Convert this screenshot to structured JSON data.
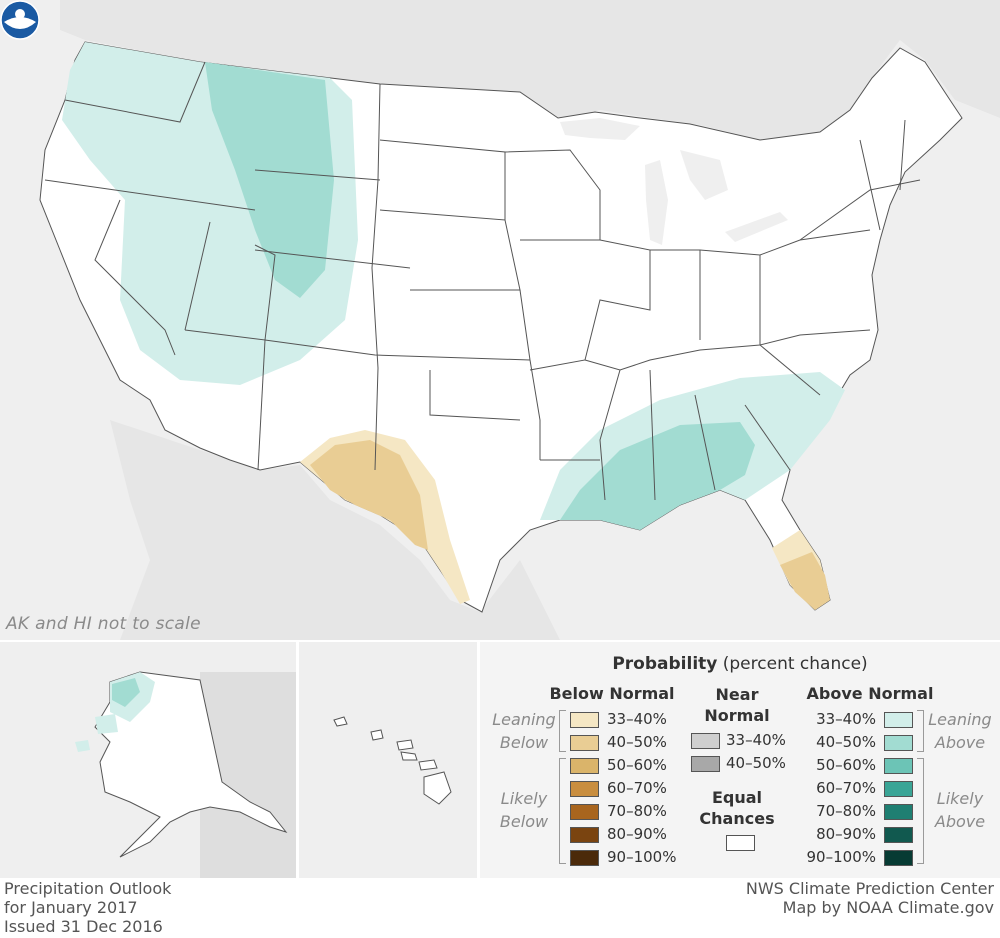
{
  "map": {
    "scale_note": "AK and HI not to scale",
    "logo_icon": "noaa-logo-icon",
    "colors": {
      "background_land": "#e6e6e6",
      "water": "#efefef",
      "us_land": "#ffffff",
      "state_border": "#555555"
    },
    "regions": [
      {
        "id": "northwest-leaning-above",
        "category": "Above Normal 33-40%",
        "color": "#d2eeea"
      },
      {
        "id": "northern-rockies-above",
        "category": "Above Normal 40-50%",
        "color": "#a2dcd2"
      },
      {
        "id": "southeast-leaning-above",
        "category": "Above Normal 33-40%",
        "color": "#d2eeea"
      },
      {
        "id": "gulf-coast-above",
        "category": "Above Normal 40-50%",
        "color": "#a2dcd2"
      },
      {
        "id": "texas-leaning-below",
        "category": "Below Normal 33-40%",
        "color": "#f5e7c4"
      },
      {
        "id": "west-texas-below",
        "category": "Below Normal 40-50%",
        "color": "#e9cd94"
      },
      {
        "id": "florida-leaning-below",
        "category": "Below Normal 33-40%",
        "color": "#f5e7c4"
      },
      {
        "id": "south-florida-below",
        "category": "Below Normal 40-50%",
        "color": "#e9cd94"
      },
      {
        "id": "alaska-leaning-above",
        "category": "Above Normal 33-40%",
        "color": "#d2eeea"
      },
      {
        "id": "alaska-above",
        "category": "Above Normal 40-50%",
        "color": "#a2dcd2"
      }
    ]
  },
  "legend": {
    "title_bold": "Probability",
    "title_rest": " (percent chance)",
    "below": {
      "heading": "Below Normal",
      "leaning_label": [
        "Leaning",
        "Below"
      ],
      "likely_label": [
        "Likely",
        "Below"
      ],
      "items": [
        {
          "label": "33–40%",
          "color": "#f5e7c4"
        },
        {
          "label": "40–50%",
          "color": "#e9cd94"
        },
        {
          "label": "50–60%",
          "color": "#dab46a"
        },
        {
          "label": "60–70%",
          "color": "#c98e3f"
        },
        {
          "label": "70–80%",
          "color": "#a8651e"
        },
        {
          "label": "80–90%",
          "color": "#7a4410"
        },
        {
          "label": "90–100%",
          "color": "#4b2a0a"
        }
      ]
    },
    "near": {
      "heading": [
        "Near",
        "Normal"
      ],
      "items": [
        {
          "label": "33–40%",
          "color": "#cfcfcf"
        },
        {
          "label": "40–50%",
          "color": "#a8a8a8"
        }
      ]
    },
    "equal": {
      "heading": [
        "Equal",
        "Chances"
      ],
      "color": "#ffffff"
    },
    "above": {
      "heading": "Above Normal",
      "leaning_label": [
        "Leaning",
        "Above"
      ],
      "likely_label": [
        "Likely",
        "Above"
      ],
      "items": [
        {
          "label": "33–40%",
          "color": "#d2eeea"
        },
        {
          "label": "40–50%",
          "color": "#a2dcd2"
        },
        {
          "label": "50–60%",
          "color": "#6cc4b6"
        },
        {
          "label": "60–70%",
          "color": "#3aa596"
        },
        {
          "label": "70–80%",
          "color": "#1f7f72"
        },
        {
          "label": "80–90%",
          "color": "#11594f"
        },
        {
          "label": "90–100%",
          "color": "#073b33"
        }
      ]
    }
  },
  "footer": {
    "left": [
      "Precipitation Outlook",
      "for January 2017",
      "Issued 31 Dec 2016"
    ],
    "right": [
      "NWS Climate Prediction Center",
      "Map by NOAA Climate.gov"
    ]
  }
}
